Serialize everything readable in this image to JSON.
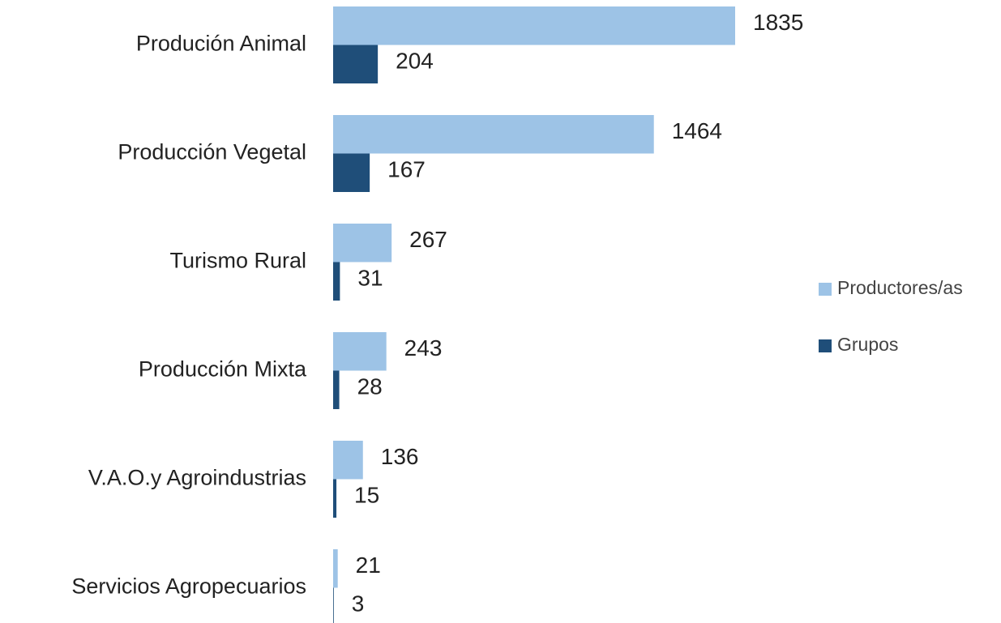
{
  "chart_data": {
    "type": "bar",
    "orientation": "horizontal",
    "categories": [
      "Produción Animal",
      "Producción Vegetal",
      "Turismo Rural",
      "Producción Mixta",
      "V.A.O.y Agroindustrias",
      "Servicios Agropecuarios"
    ],
    "series": [
      {
        "name": "Productores/as",
        "color": "#9dc3e6",
        "values": [
          1835,
          1464,
          267,
          243,
          136,
          21
        ]
      },
      {
        "name": "Grupos",
        "color": "#1f4e79",
        "values": [
          204,
          167,
          31,
          28,
          15,
          3
        ]
      }
    ],
    "legend": "right"
  }
}
